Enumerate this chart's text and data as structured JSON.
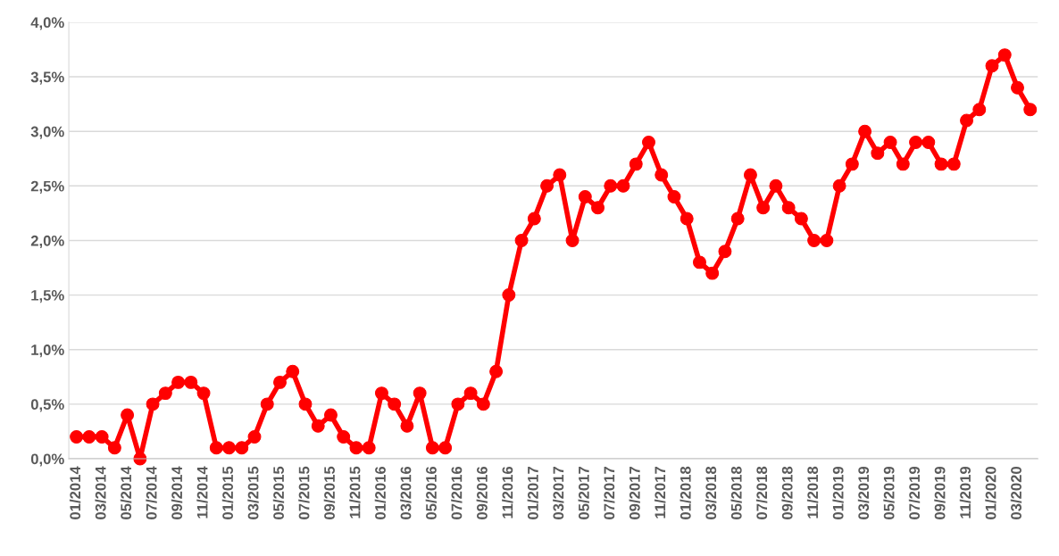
{
  "chart_data": {
    "type": "line",
    "categories": [
      "01/2014",
      null,
      "03/2014",
      null,
      "05/2014",
      null,
      "07/2014",
      null,
      "09/2014",
      null,
      "11/2014",
      null,
      "01/2015",
      null,
      "03/2015",
      null,
      "05/2015",
      null,
      "07/2015",
      null,
      "09/2015",
      null,
      "11/2015",
      null,
      "01/2016",
      null,
      "03/2016",
      null,
      "05/2016",
      null,
      "07/2016",
      null,
      "09/2016",
      null,
      "11/2016",
      null,
      "01/2017",
      null,
      "03/2017",
      null,
      "05/2017",
      null,
      "07/2017",
      null,
      "09/2017",
      null,
      "11/2017",
      null,
      "01/2018",
      null,
      "03/2018",
      null,
      "05/2018",
      null,
      "07/2018",
      null,
      "09/2018",
      null,
      "11/2018",
      null,
      "01/2019",
      null,
      "03/2019",
      null,
      "05/2019",
      null,
      "07/2019",
      null,
      "09/2019",
      null,
      "11/2019",
      null,
      "01/2020",
      null,
      "03/2020",
      null
    ],
    "series": [
      {
        "color": "#ff0000",
        "values": [
          0.2,
          0.2,
          0.2,
          0.1,
          0.4,
          0.0,
          0.5,
          0.6,
          0.7,
          0.7,
          0.6,
          0.1,
          0.1,
          0.1,
          0.2,
          0.5,
          0.7,
          0.8,
          0.5,
          0.3,
          0.4,
          0.2,
          0.1,
          0.1,
          0.6,
          0.5,
          0.3,
          0.6,
          0.1,
          0.1,
          0.5,
          0.6,
          0.5,
          0.8,
          1.5,
          2.0,
          2.2,
          2.5,
          2.6,
          2.0,
          2.4,
          2.3,
          2.5,
          2.5,
          2.7,
          2.9,
          2.6,
          2.4,
          2.2,
          1.8,
          1.7,
          1.9,
          2.2,
          2.6,
          2.3,
          2.5,
          2.3,
          2.2,
          2.0,
          2.0,
          2.5,
          2.7,
          3.0,
          2.8,
          2.9,
          2.7,
          2.9,
          2.9,
          2.7,
          2.7,
          3.1,
          3.2,
          3.6,
          3.7,
          3.4,
          3.2
        ]
      }
    ],
    "ylim": [
      0,
      4
    ],
    "yticks": [
      {
        "value": 0,
        "label": "0,0%"
      },
      {
        "value": 0.5,
        "label": "0,5%"
      },
      {
        "value": 1,
        "label": "1,0%"
      },
      {
        "value": 1.5,
        "label": "1,5%"
      },
      {
        "value": 2,
        "label": "2,0%"
      },
      {
        "value": 2.5,
        "label": "2,5%"
      },
      {
        "value": 3,
        "label": "3,0%"
      },
      {
        "value": 3.5,
        "label": "3,5%"
      },
      {
        "value": 4,
        "label": "4,0%"
      }
    ],
    "grid": "y",
    "marker": "circle",
    "line_style": "solid"
  }
}
